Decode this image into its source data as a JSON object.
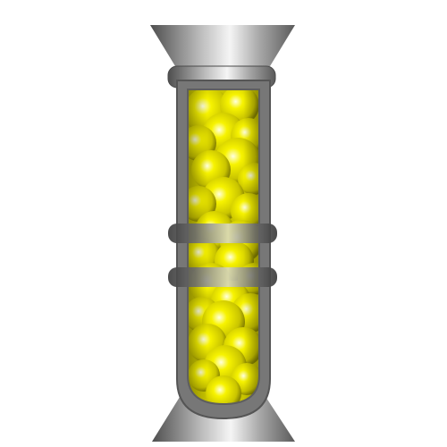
{
  "illustration": {
    "subject": "capsule-tube-with-yellow-spheres",
    "colors": {
      "background": "#ffffff",
      "metal_dark": "#5a5a5a",
      "metal_light": "#f2f2f2",
      "tube_frame": "#6e6e6e",
      "liquid_yellow": "#f3f000",
      "sphere_highlight": "#ffffcc",
      "band_dark": "#4a4a4a"
    }
  }
}
